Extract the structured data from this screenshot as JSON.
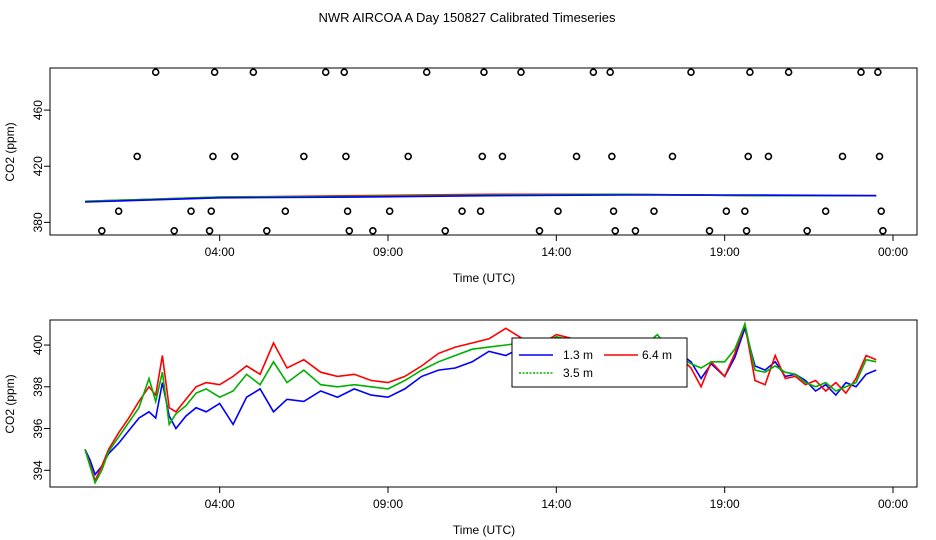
{
  "chart_data": {
    "title": "NWR AIRCOA A  Day 150827  Calibrated Timeseries",
    "panels": [
      {
        "type": "scatter+line",
        "xlabel": "Time (UTC)",
        "ylabel": "CO2 (ppm)",
        "xlim": [
          0,
          24
        ],
        "ylim": [
          371,
          490
        ],
        "yticks": [
          380,
          420,
          460
        ],
        "xticks": [
          {
            "x": 4,
            "label": "04:00"
          },
          {
            "x": 9,
            "label": "09:00"
          },
          {
            "x": 14,
            "label": "14:00"
          },
          {
            "x": 19,
            "label": "19:00"
          },
          {
            "x": 24,
            "label": "00:00"
          }
        ],
        "outlier_points": [
          {
            "x": 0.5,
            "y": 374
          },
          {
            "x": 1.0,
            "y": 388
          },
          {
            "x": 1.55,
            "y": 427
          },
          {
            "x": 2.1,
            "y": 487
          },
          {
            "x": 2.65,
            "y": 374
          },
          {
            "x": 3.15,
            "y": 388
          },
          {
            "x": 3.7,
            "y": 374
          },
          {
            "x": 3.75,
            "y": 388
          },
          {
            "x": 3.8,
            "y": 427
          },
          {
            "x": 3.85,
            "y": 487
          },
          {
            "x": 4.45,
            "y": 427
          },
          {
            "x": 5.0,
            "y": 487
          },
          {
            "x": 5.4,
            "y": 374
          },
          {
            "x": 5.95,
            "y": 388
          },
          {
            "x": 6.5,
            "y": 427
          },
          {
            "x": 7.15,
            "y": 487
          },
          {
            "x": 7.7,
            "y": 487
          },
          {
            "x": 7.75,
            "y": 427
          },
          {
            "x": 7.8,
            "y": 388
          },
          {
            "x": 7.85,
            "y": 374
          },
          {
            "x": 8.55,
            "y": 374
          },
          {
            "x": 9.05,
            "y": 388
          },
          {
            "x": 9.6,
            "y": 427
          },
          {
            "x": 10.15,
            "y": 487
          },
          {
            "x": 10.7,
            "y": 374
          },
          {
            "x": 11.2,
            "y": 388
          },
          {
            "x": 11.75,
            "y": 388
          },
          {
            "x": 11.8,
            "y": 427
          },
          {
            "x": 11.85,
            "y": 487
          },
          {
            "x": 12.4,
            "y": 427
          },
          {
            "x": 12.95,
            "y": 487
          },
          {
            "x": 13.5,
            "y": 374
          },
          {
            "x": 14.05,
            "y": 388
          },
          {
            "x": 14.6,
            "y": 427
          },
          {
            "x": 15.1,
            "y": 487
          },
          {
            "x": 15.6,
            "y": 487
          },
          {
            "x": 15.65,
            "y": 427
          },
          {
            "x": 15.7,
            "y": 388
          },
          {
            "x": 15.75,
            "y": 374
          },
          {
            "x": 16.35,
            "y": 374
          },
          {
            "x": 16.9,
            "y": 388
          },
          {
            "x": 17.45,
            "y": 427
          },
          {
            "x": 18.0,
            "y": 487
          },
          {
            "x": 18.55,
            "y": 374
          },
          {
            "x": 19.05,
            "y": 388
          },
          {
            "x": 19.6,
            "y": 388
          },
          {
            "x": 19.65,
            "y": 374
          },
          {
            "x": 19.7,
            "y": 427
          },
          {
            "x": 19.75,
            "y": 487
          },
          {
            "x": 20.3,
            "y": 427
          },
          {
            "x": 20.9,
            "y": 487
          },
          {
            "x": 21.45,
            "y": 374
          },
          {
            "x": 22.0,
            "y": 388
          },
          {
            "x": 22.5,
            "y": 427
          },
          {
            "x": 23.05,
            "y": 487
          },
          {
            "x": 23.55,
            "y": 487
          },
          {
            "x": 23.6,
            "y": 427
          },
          {
            "x": 23.65,
            "y": 388
          },
          {
            "x": 23.7,
            "y": 374
          }
        ],
        "series": [
          {
            "name": "red",
            "color": "#ff0000",
            "x": [
              0,
              4,
              8,
              12,
              16,
              20,
              23.5
            ],
            "y": [
              395,
              398,
              399,
              400,
              400,
              399,
              399
            ]
          },
          {
            "name": "green",
            "color": "#00b000",
            "x": [
              0,
              4,
              8,
              12,
              16,
              20,
              23.5
            ],
            "y": [
              395,
              398,
              398.5,
              399.5,
              400,
              399,
              399
            ]
          },
          {
            "name": "blue",
            "color": "#0000ff",
            "x": [
              0,
              4,
              8,
              12,
              16,
              20,
              23.5
            ],
            "y": [
              394.5,
              397.5,
              398,
              399,
              399.5,
              399.5,
              399
            ]
          }
        ]
      },
      {
        "type": "line",
        "xlabel": "Time (UTC)",
        "ylabel": "CO2 (ppm)",
        "xlim": [
          0,
          24
        ],
        "ylim": [
          393.2,
          401.2
        ],
        "yticks": [
          394,
          396,
          398,
          400
        ],
        "xticks": [
          {
            "x": 4,
            "label": "04:00"
          },
          {
            "x": 9,
            "label": "09:00"
          },
          {
            "x": 14,
            "label": "14:00"
          },
          {
            "x": 19,
            "label": "19:00"
          },
          {
            "x": 24,
            "label": "00:00"
          }
        ],
        "legend": {
          "placement": "top-center",
          "entries": [
            "1.3 m",
            "6.4 m",
            "3.5 m"
          ]
        },
        "series": [
          {
            "name": "1.3 m",
            "color": "#0000ff",
            "x": [
              0,
              0.15,
              0.3,
              0.5,
              0.7,
              1.0,
              1.3,
              1.6,
              1.9,
              2.1,
              2.3,
              2.5,
              2.7,
              3.0,
              3.3,
              3.6,
              4.0,
              4.4,
              4.8,
              5.2,
              5.6,
              6.0,
              6.5,
              7.0,
              7.5,
              8.0,
              8.5,
              9.0,
              9.5,
              10.0,
              10.5,
              11.0,
              11.5,
              12.0,
              12.5,
              13.0,
              13.5,
              14.0,
              14.5,
              15.0,
              15.5,
              16.0,
              16.5,
              17.0,
              17.5,
              18.0,
              18.3,
              18.6,
              19.0,
              19.3,
              19.6,
              19.9,
              20.2,
              20.5,
              20.8,
              21.1,
              21.4,
              21.7,
              22.0,
              22.3,
              22.6,
              22.9,
              23.2,
              23.5
            ],
            "y": [
              395.0,
              394.5,
              393.8,
              394.2,
              394.8,
              395.3,
              395.9,
              396.5,
              396.8,
              396.5,
              398.2,
              396.6,
              396.0,
              396.6,
              397.0,
              396.8,
              397.2,
              396.2,
              397.5,
              397.9,
              396.8,
              397.4,
              397.3,
              397.8,
              397.5,
              397.9,
              397.6,
              397.5,
              397.9,
              398.5,
              398.8,
              398.9,
              399.2,
              399.7,
              399.5,
              399.9,
              399.7,
              399.6,
              399.8,
              399.7,
              399.5,
              399.6,
              399.7,
              399.5,
              399.8,
              399.2,
              398.4,
              399.1,
              398.5,
              399.4,
              400.8,
              399.0,
              398.8,
              399.2,
              398.5,
              398.6,
              398.3,
              397.8,
              398.1,
              397.6,
              398.2,
              398.0,
              398.6,
              398.8
            ]
          },
          {
            "name": "6.4 m",
            "color": "#ff0000",
            "x": [
              0,
              0.15,
              0.3,
              0.5,
              0.7,
              1.0,
              1.3,
              1.6,
              1.9,
              2.1,
              2.3,
              2.5,
              2.7,
              3.0,
              3.3,
              3.6,
              4.0,
              4.4,
              4.8,
              5.2,
              5.6,
              6.0,
              6.5,
              7.0,
              7.5,
              8.0,
              8.5,
              9.0,
              9.5,
              10.0,
              10.5,
              11.0,
              11.5,
              12.0,
              12.5,
              13.0,
              13.5,
              14.0,
              14.5,
              15.0,
              15.5,
              16.0,
              16.5,
              17.0,
              17.5,
              18.0,
              18.3,
              18.6,
              19.0,
              19.3,
              19.6,
              19.9,
              20.2,
              20.5,
              20.8,
              21.1,
              21.4,
              21.7,
              22.0,
              22.3,
              22.6,
              22.9,
              23.2,
              23.5
            ],
            "y": [
              395.0,
              394.3,
              393.5,
              394.2,
              395.0,
              395.8,
              396.5,
              397.3,
              398.0,
              397.6,
              399.5,
              397.0,
              396.8,
              397.4,
              398.0,
              398.2,
              398.1,
              398.5,
              399.0,
              398.6,
              400.1,
              398.9,
              399.3,
              398.7,
              398.5,
              398.6,
              398.3,
              398.2,
              398.5,
              399.0,
              399.6,
              399.9,
              400.1,
              400.3,
              400.8,
              400.3,
              400.0,
              400.5,
              400.3,
              400.0,
              399.4,
              399.9,
              399.8,
              399.6,
              399.7,
              398.9,
              398.0,
              399.2,
              398.5,
              399.6,
              401.0,
              398.3,
              398.1,
              399.5,
              398.4,
              398.5,
              398.1,
              398.3,
              397.8,
              398.2,
              397.7,
              398.4,
              399.5,
              399.3
            ]
          },
          {
            "name": "3.5 m",
            "color": "#00b000",
            "x": [
              0,
              0.15,
              0.3,
              0.5,
              0.7,
              1.0,
              1.3,
              1.6,
              1.9,
              2.1,
              2.3,
              2.5,
              2.7,
              3.0,
              3.3,
              3.6,
              4.0,
              4.4,
              4.8,
              5.2,
              5.6,
              6.0,
              6.5,
              7.0,
              7.5,
              8.0,
              8.5,
              9.0,
              9.5,
              10.0,
              10.5,
              11.0,
              11.5,
              12.0,
              12.5,
              13.0,
              13.5,
              14.0,
              14.5,
              15.0,
              15.5,
              16.0,
              16.5,
              17.0,
              17.5,
              18.0,
              18.3,
              18.6,
              19.0,
              19.3,
              19.6,
              19.9,
              20.2,
              20.5,
              20.8,
              21.1,
              21.4,
              21.7,
              22.0,
              22.3,
              22.6,
              22.9,
              23.2,
              23.5
            ],
            "y": [
              395.0,
              394.2,
              393.4,
              394.0,
              394.9,
              395.6,
              396.3,
              397.0,
              398.4,
              397.3,
              398.7,
              396.2,
              396.7,
              397.1,
              397.7,
              397.9,
              397.5,
              397.8,
              398.6,
              398.1,
              399.2,
              398.2,
              398.8,
              398.1,
              398.0,
              398.1,
              398.0,
              397.9,
              398.3,
              398.8,
              399.2,
              399.5,
              399.8,
              399.9,
              400.0,
              400.1,
              399.9,
              400.4,
              400.2,
              399.9,
              399.8,
              399.9,
              399.8,
              400.5,
              399.6,
              399.1,
              398.9,
              399.2,
              399.2,
              399.8,
              401.0,
              398.8,
              398.7,
              399.0,
              398.7,
              398.6,
              398.2,
              398.0,
              398.2,
              397.8,
              398.0,
              398.2,
              399.3,
              399.2
            ]
          }
        ]
      }
    ]
  }
}
